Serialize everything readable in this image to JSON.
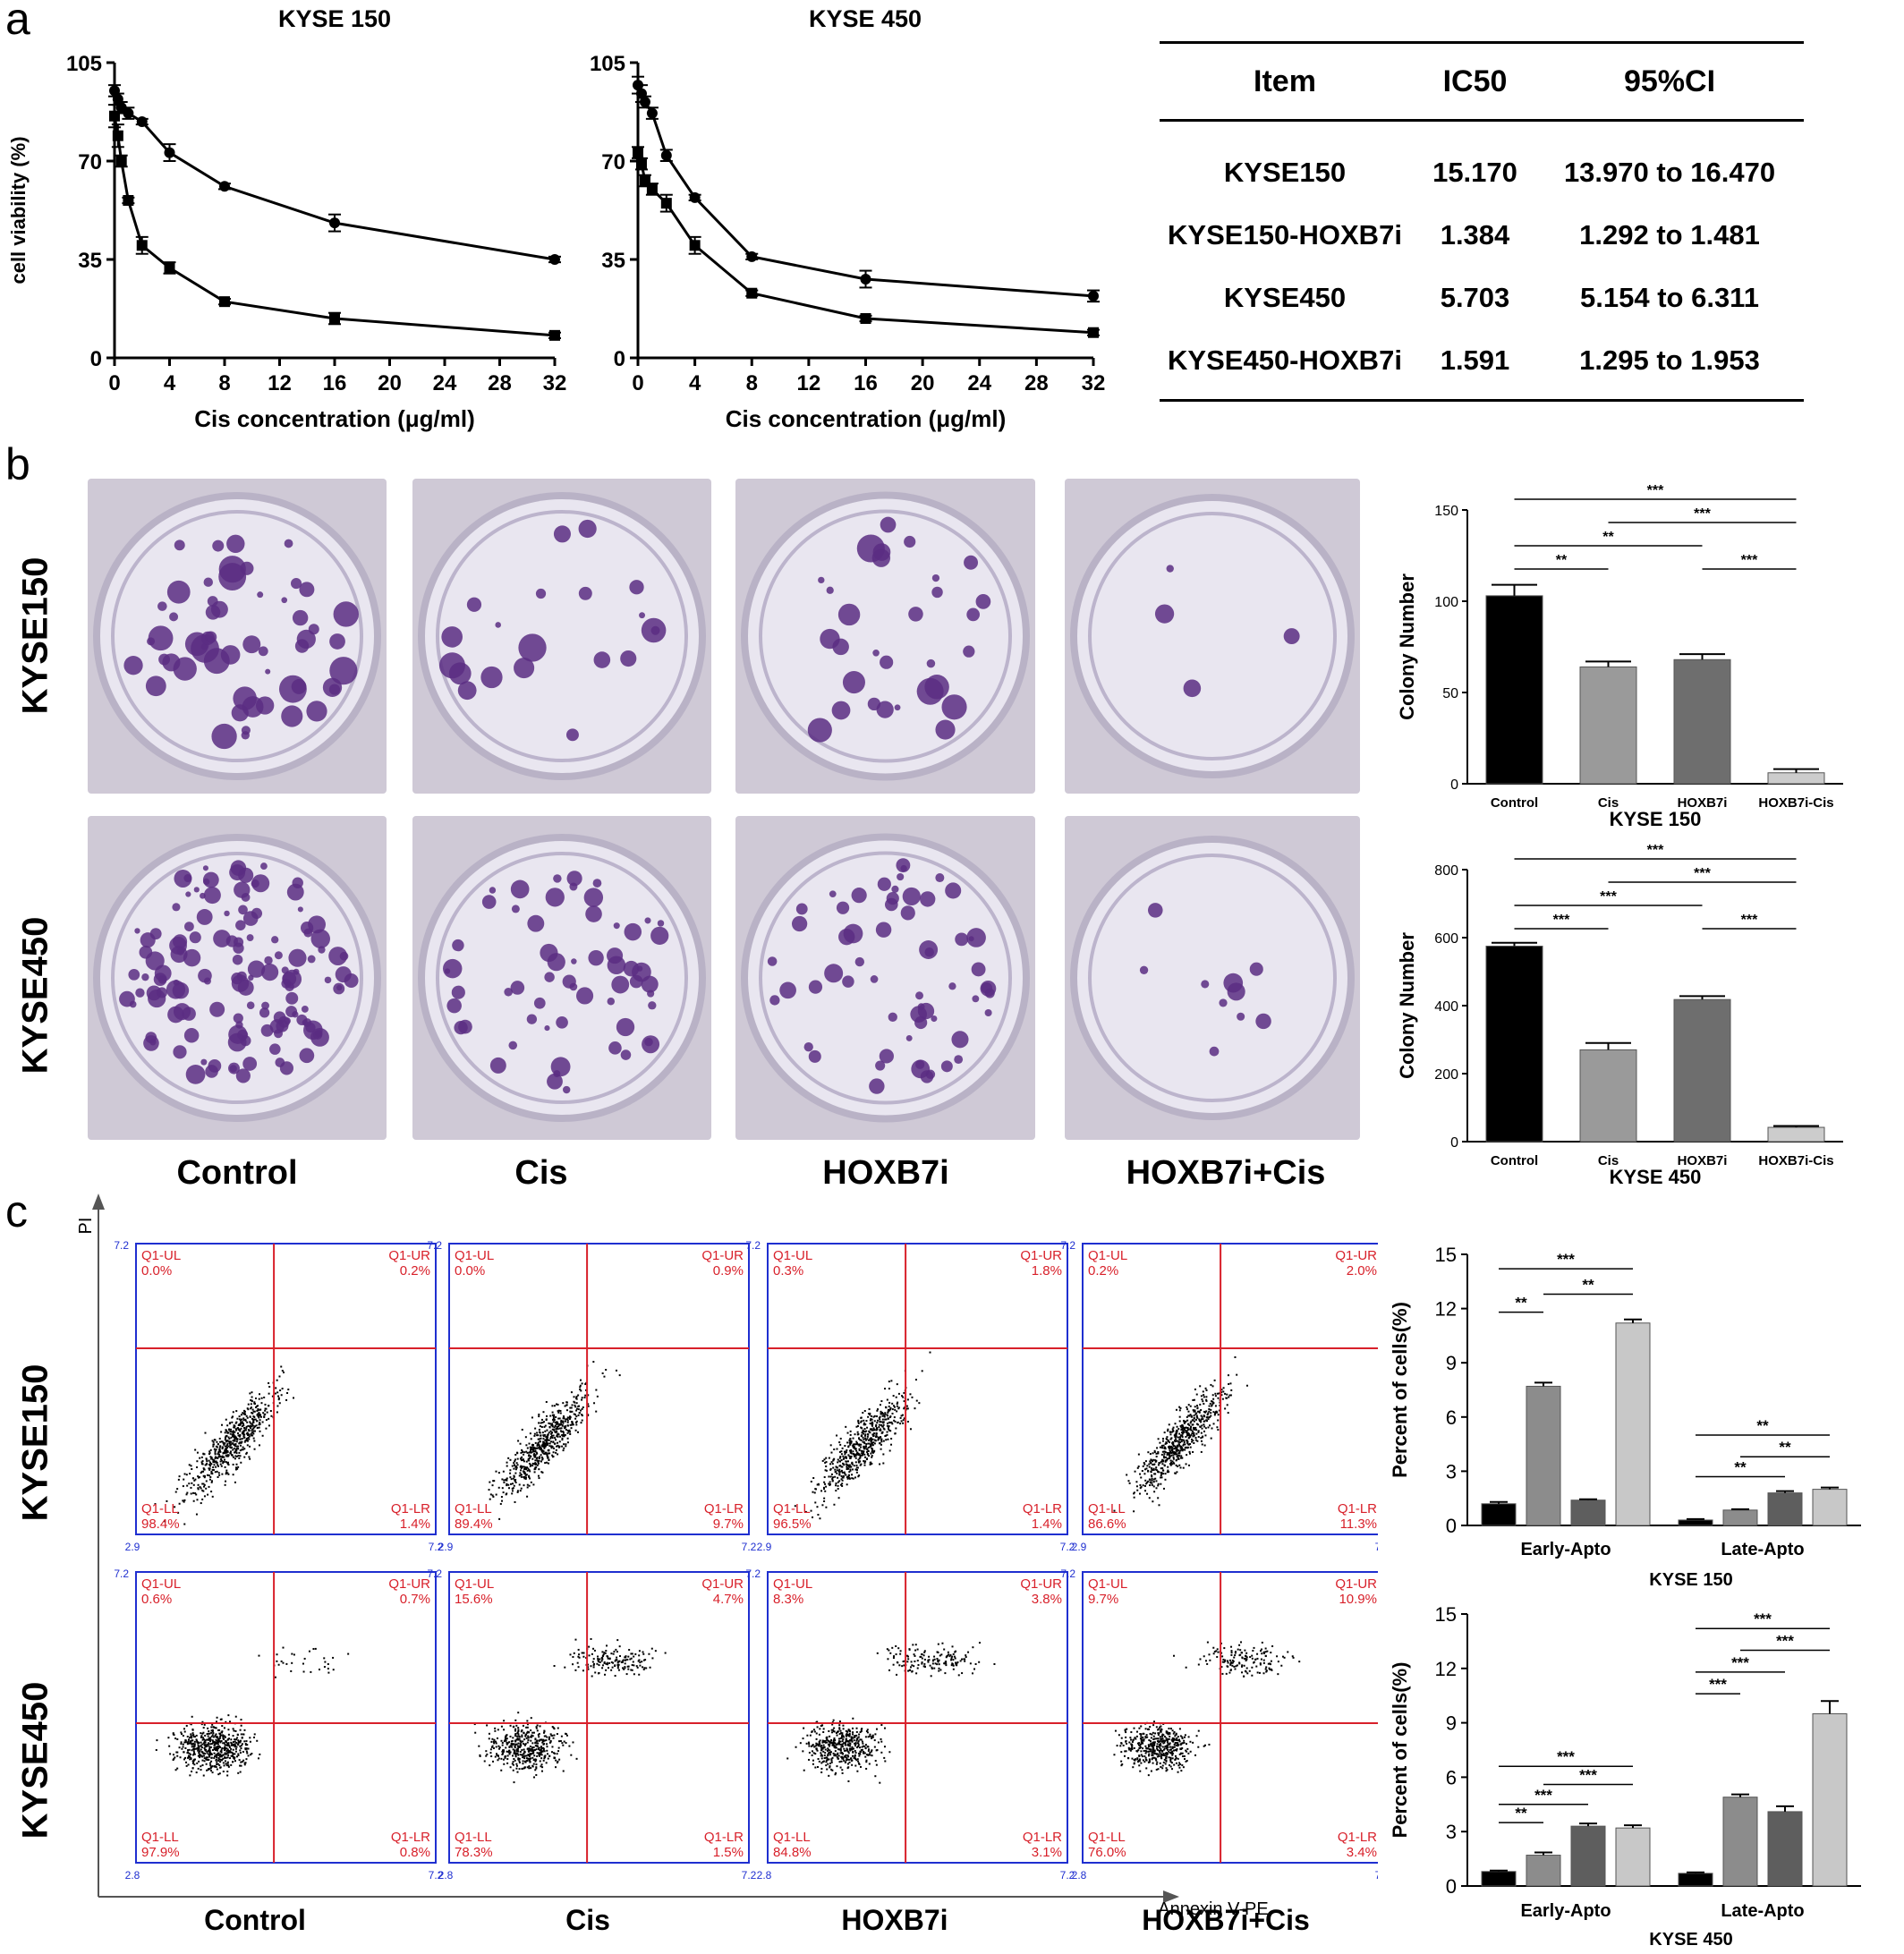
{
  "panel_labels": {
    "a": "a",
    "b": "b",
    "c": "c"
  },
  "panel_a": {
    "charts": [
      {
        "title": "KYSE 150",
        "ytick_labels": [
          "0",
          "35",
          "70",
          "105"
        ],
        "xtick_labels": [
          "0",
          "4",
          "8",
          "12",
          "16",
          "20",
          "24",
          "28",
          "32"
        ],
        "xlabel": "Cis  concentration  (μg/ml)",
        "ylabel": "cell viability (%)"
      },
      {
        "title": "KYSE 450",
        "ytick_labels": [
          "0",
          "35",
          "70",
          "105"
        ],
        "xtick_labels": [
          "0",
          "4",
          "8",
          "12",
          "16",
          "20",
          "24",
          "28",
          "32"
        ],
        "xlabel": "Cis  concentration  (μg/ml)",
        "ylabel": ""
      }
    ],
    "table": {
      "headers": [
        "Item",
        "IC50",
        "95%CI"
      ],
      "rows": [
        [
          "KYSE150",
          "15.170",
          "13.970 to 16.470"
        ],
        [
          "KYSE150-HOXB7i",
          "1.384",
          "1.292 to 1.481"
        ],
        [
          "KYSE450",
          "5.703",
          "5.154 to 6.311"
        ],
        [
          "KYSE450-HOXB7i",
          "1.591",
          "1.295 to 1.953"
        ]
      ]
    }
  },
  "panel_b": {
    "row_labels": [
      "KYSE150",
      "KYSE450"
    ],
    "col_labels": [
      "Control",
      "Cis",
      "HOXB7i",
      "HOXB7i+Cis"
    ],
    "colors": {
      "stain": "#5a2d82",
      "plate": "#e9e6f0"
    },
    "charts": [
      {
        "ytick_labels": [
          "0",
          "50",
          "100",
          "150"
        ],
        "ylabel": "Colony Number",
        "xlabel": "KYSE 150",
        "categories": [
          "Control",
          "Cis",
          "HOXB7i",
          "HOXB7i-Cis"
        ],
        "sig": [
          "***",
          "***",
          "**",
          "**",
          "***"
        ]
      },
      {
        "ytick_labels": [
          "0",
          "200",
          "400",
          "600",
          "800"
        ],
        "ylabel": "Colony Number",
        "xlabel": "KYSE 450",
        "categories": [
          "Control",
          "Cis",
          "HOXB7i",
          "HOXB7i-Cis"
        ],
        "sig": [
          "***",
          "***",
          "***",
          "***",
          "***"
        ]
      }
    ]
  },
  "panel_c": {
    "row_labels": [
      "KYSE150",
      "KYSE450"
    ],
    "col_labels": [
      "Control",
      "Cis",
      "HOXB7i",
      "HOXB7i+Cis"
    ],
    "axis_y_label": "PI",
    "axis_x_label": "Annexin V-PE",
    "quadrant_names": [
      "Q1-UL",
      "Q1-UR",
      "Q1-LL",
      "Q1-LR"
    ],
    "colors": {
      "frame": "#1f2fd0",
      "gate": "#d8202a",
      "quad_text": "#d8202a"
    },
    "flow_plots": [
      [
        {
          "UL": "0.0%",
          "UR": "0.2%",
          "LL": "98.4%",
          "LR": "1.4%",
          "xmin": "2.9",
          "ytop": "7.2",
          "xmax": "7.2"
        },
        {
          "UL": "0.0%",
          "UR": "0.9%",
          "LL": "89.4%",
          "LR": "9.7%",
          "xmin": "2.9",
          "ytop": "7.2",
          "xmax": "7.2"
        },
        {
          "UL": "0.3%",
          "UR": "1.8%",
          "LL": "96.5%",
          "LR": "1.4%",
          "xmin": "2.9",
          "ytop": "7.2",
          "xmax": "7.2"
        },
        {
          "UL": "0.2%",
          "UR": "2.0%",
          "LL": "86.6%",
          "LR": "11.3%",
          "xmin": "2.9",
          "ytop": "7.2",
          "xmax": "7.2"
        }
      ],
      [
        {
          "UL": "0.6%",
          "UR": "0.7%",
          "LL": "97.9%",
          "LR": "0.8%",
          "xmin": "2.8",
          "ytop": "7.2",
          "xmax": "7.2"
        },
        {
          "UL": "15.6%",
          "UR": "4.7%",
          "LL": "78.3%",
          "LR": "1.5%",
          "xmin": "2.8",
          "ytop": "7.2",
          "xmax": "7.2"
        },
        {
          "UL": "8.3%",
          "UR": "3.8%",
          "LL": "84.8%",
          "LR": "3.1%",
          "xmin": "2.8",
          "ytop": "7.2",
          "xmax": "7.2"
        },
        {
          "UL": "9.7%",
          "UR": "10.9%",
          "LL": "76.0%",
          "LR": "3.4%",
          "xmin": "2.8",
          "ytop": "7.2",
          "xmax": "7.2"
        }
      ]
    ],
    "charts": [
      {
        "ytick_labels": [
          "0",
          "3",
          "6",
          "9",
          "12",
          "15"
        ],
        "ylabel": "Percent of cells(%)",
        "groups": [
          "Early-Apto",
          "Late-Apto"
        ],
        "title": "KYSE 150",
        "sig": [
          "***",
          "**",
          "**",
          "**",
          "**",
          "**"
        ]
      },
      {
        "ytick_labels": [
          "0",
          "3",
          "6",
          "9",
          "12",
          "15"
        ],
        "ylabel": "Percent of cells(%)",
        "groups": [
          "Early-Apto",
          "Late-Apto"
        ],
        "title": "KYSE 450",
        "sig": [
          "***",
          "***",
          "***",
          "**",
          "***",
          "***",
          "***",
          "***"
        ]
      }
    ]
  },
  "chart_data": [
    {
      "type": "line",
      "title": "KYSE 150",
      "xlabel": "Cis  concentration  (μg/ml)",
      "ylabel": "cell viability (%)",
      "xlim": [
        0,
        32
      ],
      "ylim": [
        0,
        105
      ],
      "series": [
        {
          "marker": "circle",
          "points": [
            [
              0,
              95
            ],
            [
              0.25,
              92
            ],
            [
              0.5,
              89
            ],
            [
              1,
              87
            ],
            [
              2,
              84
            ],
            [
              4,
              73
            ],
            [
              8,
              61
            ],
            [
              16,
              48
            ],
            [
              32,
              35
            ]
          ],
          "err": [
            2,
            2,
            2,
            2,
            1,
            3,
            1,
            3,
            1
          ]
        },
        {
          "marker": "square",
          "points": [
            [
              0,
              86
            ],
            [
              0.25,
              79
            ],
            [
              0.5,
              70
            ],
            [
              1,
              56
            ],
            [
              2,
              40
            ],
            [
              4,
              32
            ],
            [
              8,
              20
            ],
            [
              16,
              14
            ],
            [
              32,
              8
            ]
          ],
          "err": [
            4,
            4,
            2,
            1,
            3,
            2,
            1,
            2,
            1
          ]
        }
      ]
    },
    {
      "type": "line",
      "title": "KYSE 450",
      "xlabel": "Cis  concentration  (μg/ml)",
      "xlim": [
        0,
        32
      ],
      "ylim": [
        0,
        105
      ],
      "series": [
        {
          "marker": "circle",
          "points": [
            [
              0,
              97
            ],
            [
              0.25,
              94
            ],
            [
              0.5,
              91
            ],
            [
              1,
              87
            ],
            [
              2,
              72
            ],
            [
              4,
              57
            ],
            [
              8,
              36
            ],
            [
              16,
              28
            ],
            [
              32,
              22
            ]
          ],
          "err": [
            3,
            3,
            2,
            2,
            2,
            1,
            1,
            3,
            2
          ]
        },
        {
          "marker": "square",
          "points": [
            [
              0,
              73
            ],
            [
              0.25,
              69
            ],
            [
              0.5,
              63
            ],
            [
              1,
              60
            ],
            [
              2,
              55
            ],
            [
              4,
              40
            ],
            [
              8,
              23
            ],
            [
              16,
              14
            ],
            [
              32,
              9
            ]
          ],
          "err": [
            2,
            2,
            2,
            2,
            3,
            3,
            1,
            1,
            1
          ]
        }
      ]
    },
    {
      "type": "bar",
      "title": "KYSE 150",
      "ylabel": "Colony Number",
      "categories": [
        "Control",
        "Cis",
        "HOXB7i",
        "HOXB7i-Cis"
      ],
      "values": [
        103,
        64,
        68,
        6
      ],
      "err": [
        6,
        3,
        3,
        2
      ],
      "ylim": [
        0,
        150
      ],
      "colors": [
        "#000000",
        "#9a9a9a",
        "#6e6e6e",
        "#cccccc"
      ]
    },
    {
      "type": "bar",
      "title": "KYSE 450",
      "ylabel": "Colony Number",
      "categories": [
        "Control",
        "Cis",
        "HOXB7i",
        "HOXB7i-Cis"
      ],
      "values": [
        575,
        270,
        418,
        42
      ],
      "err": [
        10,
        20,
        10,
        4
      ],
      "ylim": [
        0,
        800
      ],
      "colors": [
        "#000000",
        "#9a9a9a",
        "#6e6e6e",
        "#cccccc"
      ]
    },
    {
      "type": "bar",
      "title": "KYSE 150",
      "ylabel": "Percent of cells(%)",
      "categories": [
        "Early-Apto",
        "Late-Apto"
      ],
      "series": [
        {
          "values": [
            1.2,
            0.3
          ],
          "err": [
            0.1,
            0.05
          ],
          "color": "#000000"
        },
        {
          "values": [
            7.7,
            0.85
          ],
          "err": [
            0.2,
            0.05
          ],
          "color": "#8c8c8c"
        },
        {
          "values": [
            1.4,
            1.8
          ],
          "err": [
            0.05,
            0.1
          ],
          "color": "#5e5e5e"
        },
        {
          "values": [
            11.2,
            2.0
          ],
          "err": [
            0.2,
            0.1
          ],
          "color": "#c8c8c8"
        }
      ],
      "ylim": [
        0,
        15
      ]
    },
    {
      "type": "bar",
      "title": "KYSE 450",
      "ylabel": "Percent of cells(%)",
      "categories": [
        "Early-Apto",
        "Late-Apto"
      ],
      "series": [
        {
          "values": [
            0.8,
            0.7
          ],
          "err": [
            0.05,
            0.05
          ],
          "color": "#000000"
        },
        {
          "values": [
            1.7,
            4.9
          ],
          "err": [
            0.15,
            0.15
          ],
          "color": "#8c8c8c"
        },
        {
          "values": [
            3.3,
            4.1
          ],
          "err": [
            0.15,
            0.3
          ],
          "color": "#5e5e5e"
        },
        {
          "values": [
            3.2,
            9.5
          ],
          "err": [
            0.15,
            0.7
          ],
          "color": "#c8c8c8"
        }
      ],
      "ylim": [
        0,
        15
      ]
    }
  ]
}
